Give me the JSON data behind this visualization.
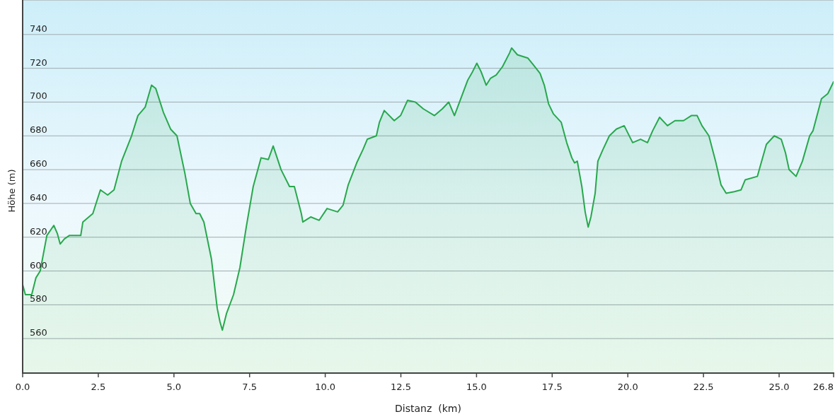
{
  "chart_data": {
    "type": "area",
    "xlabel": "Distanz  (km)",
    "ylabel": "Höhe (m)",
    "color": "#27a84c",
    "grid": "y",
    "xlim": [
      0,
      26.8
    ],
    "xticks": [
      {
        "value": 0,
        "label": "0.0"
      },
      2.5,
      {
        "value": 5,
        "label": "5.0"
      },
      7.5,
      {
        "value": 10,
        "label": "10.0"
      },
      12.5,
      {
        "value": 15,
        "label": "15.0"
      },
      17.5,
      {
        "value": 20,
        "label": "20.0"
      },
      22.5,
      {
        "value": 25,
        "label": "25.0"
      },
      26.8
    ],
    "ylim": [
      540,
      760
    ],
    "yticks": [
      560,
      580,
      600,
      620,
      640,
      660,
      680,
      700,
      720,
      740
    ],
    "x": [
      0,
      0.09,
      0.3,
      0.44,
      0.58,
      0.8,
      1.03,
      1.15,
      1.24,
      1.38,
      1.54,
      1.92,
      1.99,
      2.32,
      2.39,
      2.57,
      2.81,
      3.02,
      3.27,
      3.6,
      3.81,
      4.05,
      4.26,
      4.4,
      4.65,
      4.89,
      5.1,
      5.36,
      5.54,
      5.73,
      5.85,
      5.99,
      6.24,
      6.43,
      6.52,
      6.6,
      6.74,
      6.97,
      7.18,
      7.39,
      7.62,
      7.88,
      8.12,
      8.28,
      8.54,
      8.82,
      8.98,
      9.21,
      9.26,
      9.52,
      9.8,
      10.06,
      10.41,
      10.59,
      10.76,
      11.04,
      11.25,
      11.39,
      11.69,
      11.79,
      11.95,
      12.28,
      12.49,
      12.72,
      12.98,
      13.24,
      13.61,
      13.87,
      14.08,
      14.27,
      14.48,
      14.71,
      14.87,
      15.01,
      15.15,
      15.32,
      15.46,
      15.65,
      15.86,
      16.09,
      16.16,
      16.35,
      16.7,
      16.88,
      17.1,
      17.24,
      17.38,
      17.54,
      17.8,
      17.98,
      18.15,
      18.24,
      18.33,
      18.48,
      18.59,
      18.69,
      18.78,
      18.92,
      19.01,
      19.18,
      19.39,
      19.62,
      19.88,
      20.16,
      20.42,
      20.65,
      20.82,
      21.05,
      21.31,
      21.56,
      21.84,
      22.1,
      22.29,
      22.45,
      22.68,
      22.9,
      23.08,
      23.25,
      23.52,
      23.74,
      23.88,
      24.28,
      24.58,
      24.84,
      25.07,
      25.21,
      25.33,
      25.56,
      25.77,
      26.01,
      26.12,
      26.4,
      26.61,
      26.8
    ],
    "values": [
      592,
      586,
      586,
      596,
      600,
      621,
      627,
      622,
      616,
      619,
      621,
      621,
      629,
      634,
      638,
      648,
      645,
      648,
      665,
      680,
      692,
      697,
      710,
      708,
      694,
      684,
      680,
      658,
      640,
      634,
      634,
      629,
      607,
      578,
      570,
      565,
      575,
      586,
      602,
      626,
      650,
      667,
      666,
      674,
      660,
      650,
      650,
      634,
      629,
      632,
      630,
      637,
      635,
      639,
      651,
      664,
      672,
      678,
      680,
      688,
      695,
      689,
      692,
      701,
      700,
      696,
      692,
      696,
      700,
      692,
      702,
      713,
      718,
      723,
      718,
      710,
      714,
      716,
      721,
      729,
      732,
      728,
      726,
      722,
      717,
      710,
      699,
      693,
      688,
      676,
      667,
      664,
      665,
      650,
      635,
      626,
      632,
      646,
      665,
      672,
      680,
      684,
      686,
      676,
      678,
      676,
      683,
      691,
      686,
      689,
      689,
      692,
      692,
      686,
      680,
      665,
      651,
      646,
      647,
      648,
      654,
      656,
      675,
      680,
      678,
      670,
      660,
      656,
      665,
      680,
      683,
      702,
      705,
      712
    ]
  }
}
